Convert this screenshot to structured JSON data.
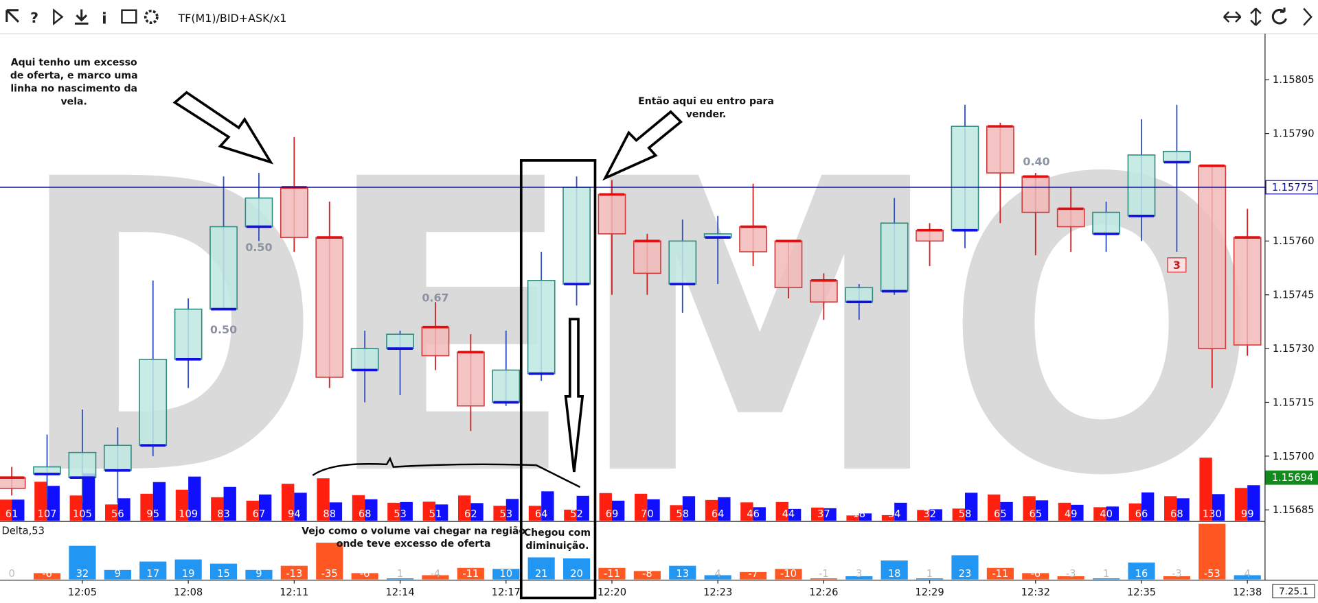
{
  "chart_data": {
    "type": "candlestick",
    "toolbar_title": "TF(M1)/BID+ASK/x1",
    "watermark": "DEMO",
    "version": "7.25.1",
    "categories": [
      null,
      null,
      "12:05",
      null,
      null,
      "12:08",
      null,
      null,
      "12:11",
      null,
      null,
      "12:14",
      null,
      null,
      "12:17",
      null,
      null,
      "12:20",
      null,
      null,
      "12:23",
      null,
      null,
      "12:26",
      null,
      null,
      "12:29",
      null,
      null,
      "12:32",
      null,
      null,
      "12:35",
      null,
      null,
      "12:38"
    ],
    "open": [
      1.15694,
      1.15695,
      1.15694,
      1.15696,
      1.15703,
      1.15727,
      1.15741,
      1.15764,
      1.15775,
      1.15761,
      1.15724,
      1.1573,
      1.15736,
      1.15729,
      1.15715,
      1.15723,
      1.15748,
      1.15773,
      1.1576,
      1.15748,
      1.15761,
      1.15764,
      1.1576,
      1.15749,
      1.15743,
      1.15746,
      1.15763,
      1.15763,
      1.15792,
      1.15778,
      1.15769,
      1.15762,
      1.15767,
      1.15782,
      1.15781,
      1.15761
    ],
    "high": [
      1.15697,
      1.15706,
      1.15713,
      1.15708,
      1.15749,
      1.15744,
      1.15778,
      1.15779,
      1.15789,
      1.15771,
      1.15735,
      1.15735,
      1.15743,
      1.15734,
      1.15735,
      1.15757,
      1.15778,
      1.15777,
      1.15762,
      1.15766,
      1.15767,
      1.15776,
      1.1576,
      1.15751,
      1.15748,
      1.15772,
      1.15765,
      1.15798,
      1.15793,
      1.15779,
      1.15775,
      1.15771,
      1.15794,
      1.15798,
      1.15781,
      1.15769
    ],
    "low": [
      1.15689,
      1.15688,
      1.15687,
      1.15687,
      1.157,
      1.15719,
      1.15741,
      1.1576,
      1.15757,
      1.15719,
      1.15715,
      1.15717,
      1.15724,
      1.15707,
      1.15714,
      1.15721,
      1.15742,
      1.15745,
      1.15745,
      1.1574,
      1.15748,
      1.15753,
      1.15744,
      1.15738,
      1.15738,
      1.15745,
      1.15753,
      1.15758,
      1.15765,
      1.15756,
      1.15757,
      1.15757,
      1.1576,
      1.15757,
      1.15719,
      1.15728
    ],
    "close": [
      1.15691,
      1.15697,
      1.15701,
      1.15703,
      1.15727,
      1.15741,
      1.15764,
      1.15772,
      1.15761,
      1.15722,
      1.1573,
      1.15734,
      1.15728,
      1.15714,
      1.15724,
      1.15749,
      1.15775,
      1.15762,
      1.15751,
      1.1576,
      1.15762,
      1.15757,
      1.15747,
      1.15743,
      1.15747,
      1.15765,
      1.1576,
      1.15792,
      1.15779,
      1.15768,
      1.15764,
      1.15768,
      1.15784,
      1.15785,
      1.1573,
      1.15731
    ],
    "up_color": "#bfe7e2",
    "up_stroke": "#2e8a80",
    "down_color": "#f2b8b8",
    "down_stroke": "#d23a3a",
    "ylim": [
      1.15682,
      1.15823
    ],
    "yticks": [
      1.15685,
      {
        "value": 1.157,
        "label": "1.15700"
      },
      1.15715,
      {
        "value": 1.1573,
        "label": "1.15730"
      },
      1.15745,
      {
        "value": 1.1576,
        "label": "1.15760"
      },
      1.15775,
      {
        "value": 1.1579,
        "label": "1.15790"
      },
      1.15805
    ],
    "price_markers": [
      {
        "value": 1.15775,
        "label": "1.15775",
        "color": "#1010a0"
      },
      {
        "value": 1.15694,
        "label": "1.15694",
        "color": "#138a1e"
      }
    ],
    "volume": {
      "values": [
        61,
        107,
        105,
        56,
        95,
        109,
        83,
        67,
        94,
        88,
        68,
        53,
        51,
        62,
        53,
        64,
        52,
        69,
        70,
        58,
        64,
        46,
        44,
        37,
        18,
        34,
        32,
        58,
        65,
        65,
        49,
        40,
        66,
        68,
        130,
        99
      ],
      "bid_color": "#ff2010",
      "ask_color": "#1010ff"
    },
    "delta": {
      "label": "Delta,53",
      "values": [
        0,
        -6,
        32,
        9,
        17,
        19,
        15,
        9,
        -13,
        -35,
        -6,
        1,
        -4,
        -11,
        10,
        21,
        20,
        -11,
        -8,
        13,
        4,
        -7,
        -10,
        -1,
        3,
        18,
        1,
        23,
        -11,
        -6,
        -3,
        1,
        16,
        -3,
        -53,
        4
      ],
      "positive_color": "#2196f3",
      "negative_color": "#ff5722"
    },
    "candle_notes": [
      "0.50",
      "0.50",
      "0.67",
      "0.40",
      "3"
    ],
    "notes": [
      {
        "lines": [
          "Aqui tenho um excesso",
          "de oferta, e marco uma",
          "linha no nascimento da",
          "vela."
        ]
      },
      {
        "lines": [
          "Então aqui eu entro para",
          "vender."
        ]
      },
      {
        "lines": [
          "Vejo como o volume vai chegar na região",
          "onde teve excesso de oferta"
        ]
      },
      {
        "lines": [
          "Chegou com",
          "diminuição."
        ]
      }
    ]
  }
}
